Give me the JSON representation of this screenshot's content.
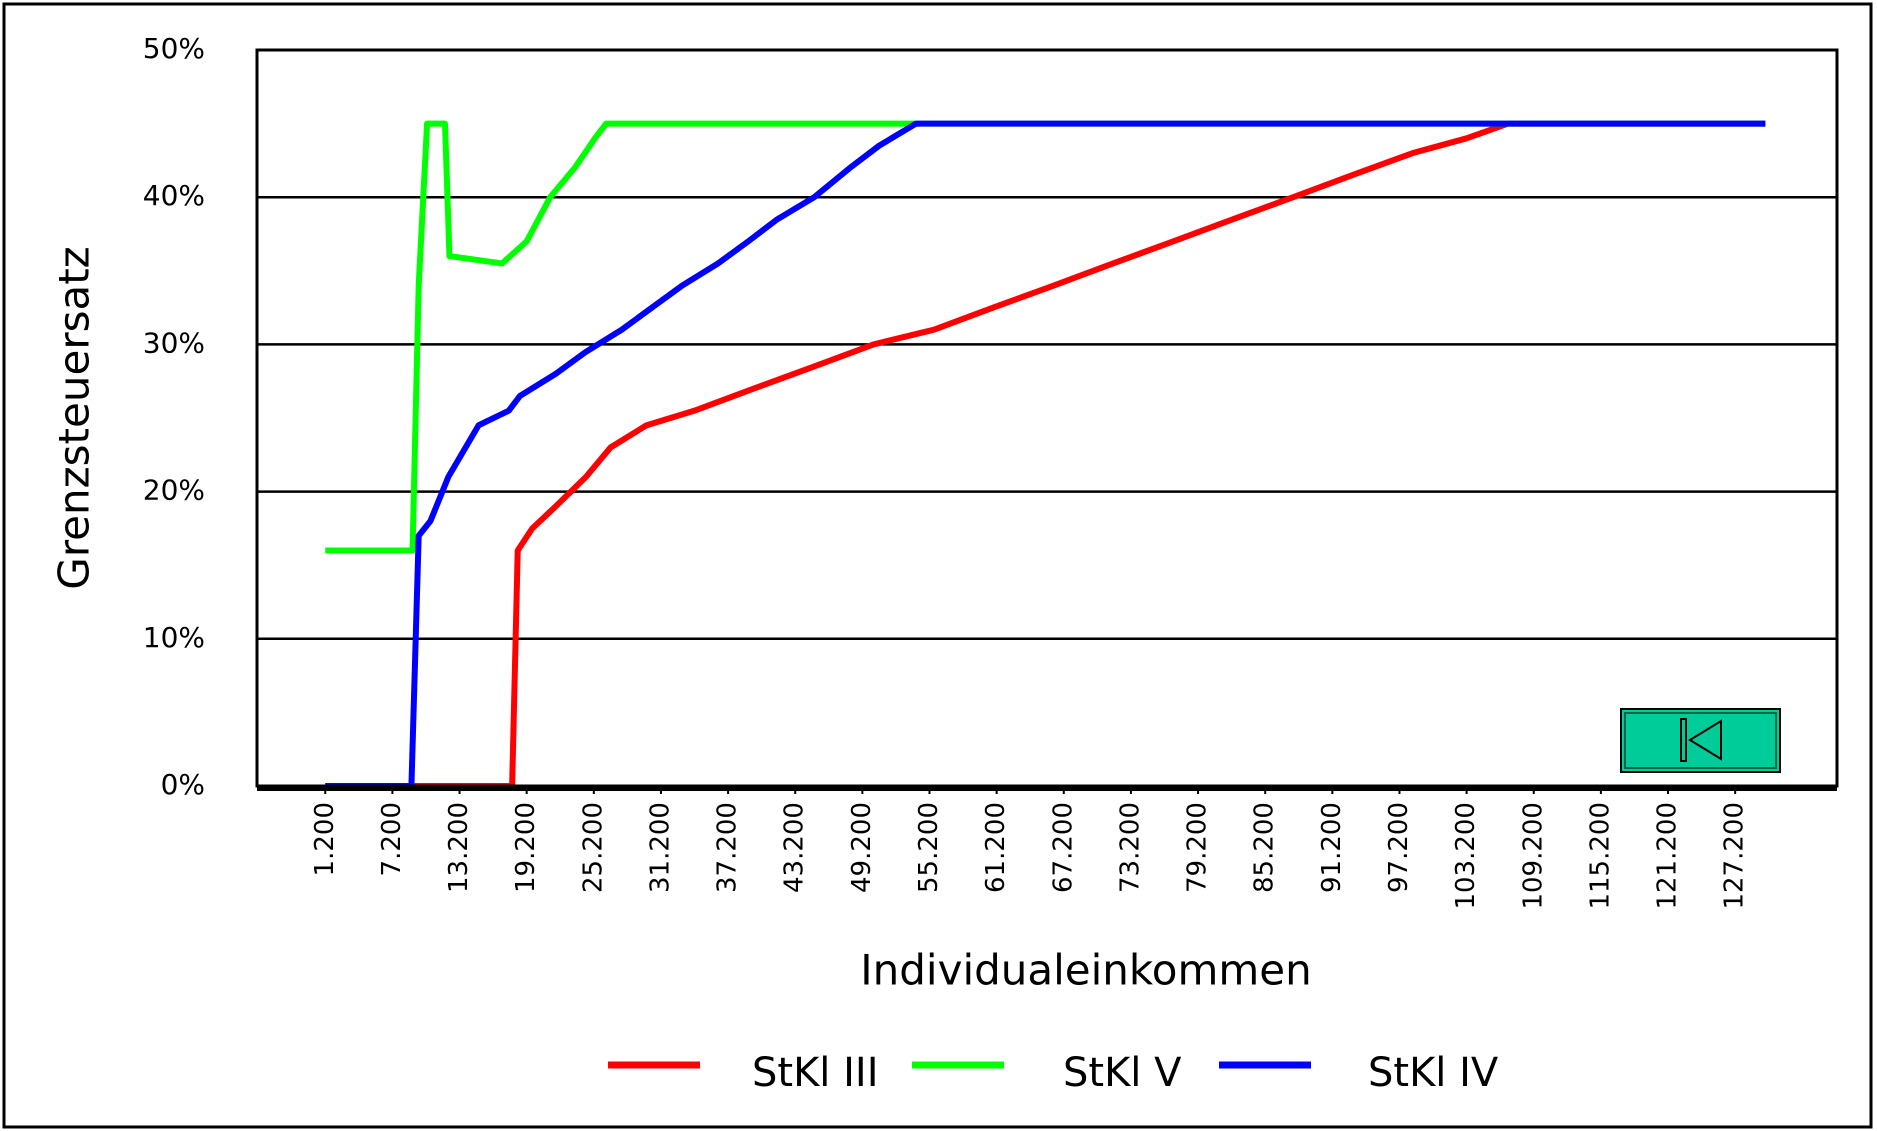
{
  "chart_data": {
    "type": "line",
    "xlabel": "Individualeinkommen",
    "ylabel": "Grenzsteuersatz",
    "xlim": [
      -4900,
      136300
    ],
    "xticks": [
      {
        "value": 1200,
        "label": "1.200"
      },
      {
        "value": 7200,
        "label": "7.200"
      },
      {
        "value": 13200,
        "label": "13.200"
      },
      {
        "value": 19200,
        "label": "19.200"
      },
      {
        "value": 25200,
        "label": "25.200"
      },
      {
        "value": 31200,
        "label": "31.200"
      },
      {
        "value": 37200,
        "label": "37.200"
      },
      {
        "value": 43200,
        "label": "43.200"
      },
      {
        "value": 49200,
        "label": "49.200"
      },
      {
        "value": 55200,
        "label": "55.200"
      },
      {
        "value": 61200,
        "label": "61.200"
      },
      {
        "value": 67200,
        "label": "67.200"
      },
      {
        "value": 73200,
        "label": "73.200"
      },
      {
        "value": 79200,
        "label": "79.200"
      },
      {
        "value": 85200,
        "label": "85.200"
      },
      {
        "value": 91200,
        "label": "91.200"
      },
      {
        "value": 97200,
        "label": "97.200"
      },
      {
        "value": 103200,
        "label": "103.200"
      },
      {
        "value": 109200,
        "label": "109.200"
      },
      {
        "value": 115200,
        "label": "115.200"
      },
      {
        "value": 121200,
        "label": "121.200"
      },
      {
        "value": 127200,
        "label": "127.200"
      }
    ],
    "ylim": [
      0,
      50
    ],
    "yticks": [
      {
        "value": 0,
        "label": "0%"
      },
      {
        "value": 10,
        "label": "10%"
      },
      {
        "value": 20,
        "label": "20%"
      },
      {
        "value": 30,
        "label": "30%"
      },
      {
        "value": 40,
        "label": "40%"
      },
      {
        "value": 50,
        "label": "50%"
      }
    ],
    "grid": true,
    "legend": "bottom",
    "series": [
      {
        "name": "StKl III",
        "color": "#ff0000",
        "x": [
          1200,
          17900,
          18400,
          19700,
          21800,
          24500,
          26700,
          29900,
          34200,
          39500,
          44900,
          50200,
          55600,
          60900,
          66300,
          71600,
          77000,
          82300,
          87700,
          93000,
          98400,
          103200,
          106900,
          129900
        ],
        "values": [
          0,
          0,
          16,
          17.5,
          19,
          21,
          23,
          24.5,
          25.5,
          27,
          28.5,
          30,
          31,
          32.5,
          34,
          35.5,
          37,
          38.5,
          40,
          41.5,
          43,
          44,
          45,
          45
        ]
      },
      {
        "name": "StKl V",
        "color": "#00ff00",
        "x": [
          1200,
          9000,
          9550,
          10300,
          11900,
          12300,
          17000,
          19200,
          21300,
          23500,
          25300,
          26300,
          129900
        ],
        "values": [
          16,
          16,
          34,
          45,
          45,
          36,
          35.5,
          37,
          40,
          42,
          44,
          45,
          45
        ]
      },
      {
        "name": "StKl IV",
        "color": "#0000ff",
        "x": [
          1200,
          8900,
          9550,
          10600,
          12200,
          14900,
          17600,
          18600,
          21800,
          24500,
          27700,
          30400,
          33100,
          36300,
          39000,
          41600,
          44900,
          48100,
          50700,
          54000,
          129900
        ],
        "values": [
          0,
          0,
          17,
          18,
          21,
          24.5,
          25.5,
          26.5,
          28,
          29.5,
          31,
          32.5,
          34,
          35.5,
          37,
          38.5,
          40,
          42,
          43.5,
          45,
          45
        ]
      }
    ]
  }
}
